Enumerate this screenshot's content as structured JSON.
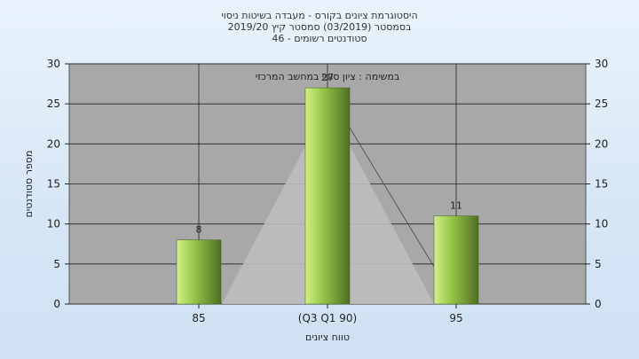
{
  "title": {
    "line1": "היסטוגרמת ציונים בקורס - מעבדה בשיטות ניסוי",
    "line2": "בסמסטר  (03/2019)  סמסטר קיץ  2019/20",
    "line3": "סטודנטים רשומים - 46"
  },
  "chart_data": {
    "type": "bar",
    "categories": [
      "85",
      "(Q3 Q1 90)",
      "95"
    ],
    "values": [
      8,
      27,
      11
    ],
    "data_labels": [
      "8",
      "27",
      "11"
    ],
    "ylim": [
      0,
      30
    ],
    "yticks": [
      0,
      5,
      10,
      15,
      20,
      25,
      30
    ],
    "ylabel": "מספר סטודנטים",
    "xlabel": "טווח ציונים",
    "annotation": "במשימה : ציון סופי במחשב המרכזי",
    "grid": true,
    "overlay": "triangle"
  },
  "colors": {
    "plot_bg": "#a8a8a8",
    "triangle": "#bdbdbd",
    "bar_light": "#d4ee8c",
    "bar_mid": "#9ccc4c",
    "bar_dark": "#4f6e23"
  }
}
